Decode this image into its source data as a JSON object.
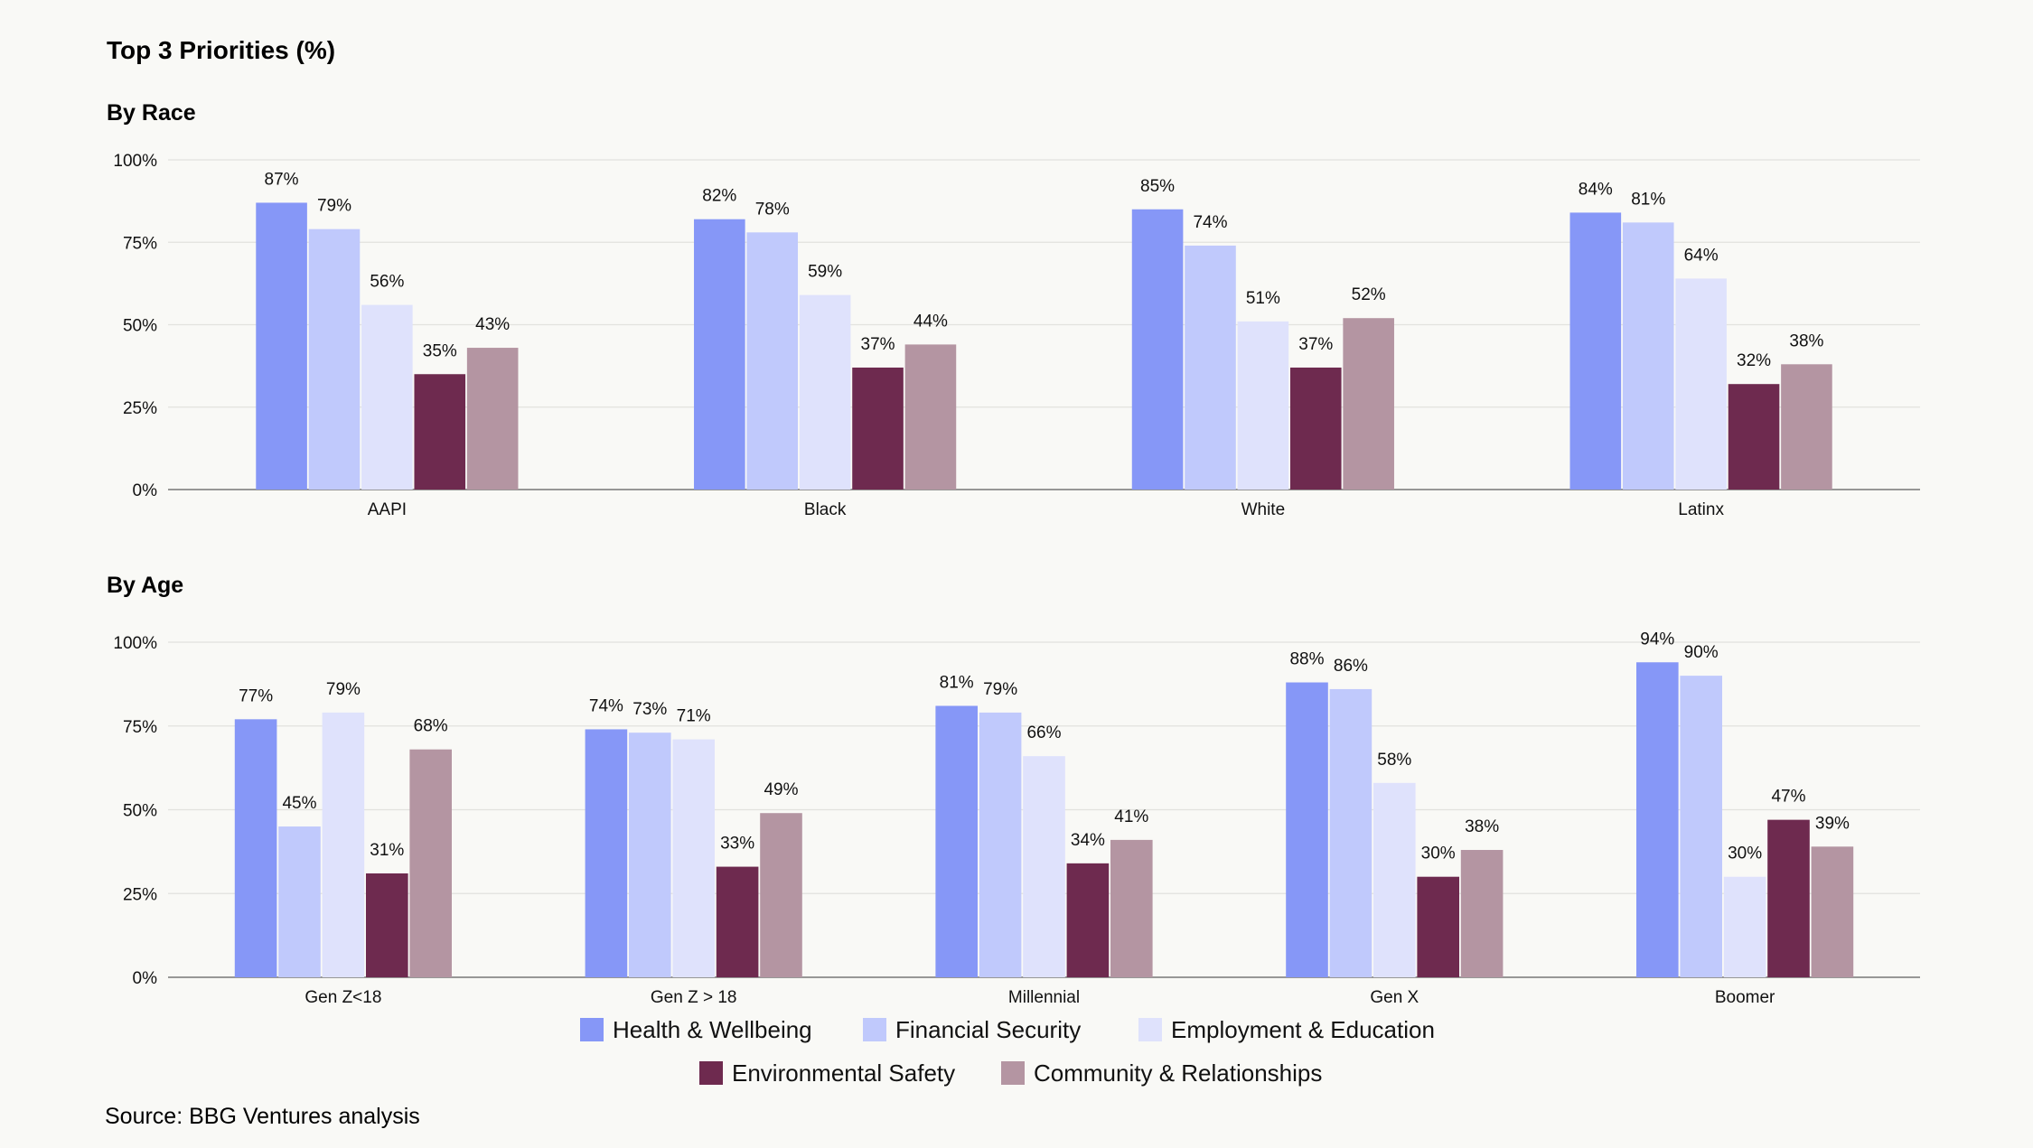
{
  "title": "Top 3 Priorities (%)",
  "source": "Source: BBG Ventures analysis",
  "colors": {
    "Health & Wellbeing": "#8697f7",
    "Financial Security": "#c0c9fc",
    "Employment & Education": "#dfe2fc",
    "Environmental Safety": "#6e2a4f",
    "Community & Relationships": "#b495a2"
  },
  "legend": [
    "Health & Wellbeing",
    "Financial Security",
    "Employment & Education",
    "Environmental Safety",
    "Community & Relationships"
  ],
  "chart_data": [
    {
      "type": "bar",
      "subtitle": "By Race",
      "categories": [
        "AAPI",
        "Black",
        "White",
        "Latinx"
      ],
      "ylim": [
        0,
        100
      ],
      "yticks": [
        "0%",
        "25%",
        "50%",
        "75%",
        "100%"
      ],
      "grid": true,
      "series": [
        {
          "name": "Health & Wellbeing",
          "values": [
            87,
            82,
            85,
            84
          ]
        },
        {
          "name": "Financial Security",
          "values": [
            79,
            78,
            74,
            81
          ]
        },
        {
          "name": "Employment & Education",
          "values": [
            56,
            59,
            51,
            64
          ]
        },
        {
          "name": "Environmental Safety",
          "values": [
            35,
            37,
            37,
            32
          ]
        },
        {
          "name": "Community & Relationships",
          "values": [
            43,
            44,
            52,
            38
          ]
        }
      ]
    },
    {
      "type": "bar",
      "subtitle": "By Age",
      "categories": [
        "Gen Z<18",
        "Gen Z > 18",
        "Millennial",
        "Gen X",
        "Boomer"
      ],
      "ylim": [
        0,
        100
      ],
      "yticks": [
        "0%",
        "25%",
        "50%",
        "75%",
        "100%"
      ],
      "grid": true,
      "legend_position": "bottom",
      "series": [
        {
          "name": "Health & Wellbeing",
          "values": [
            77,
            74,
            81,
            88,
            94
          ]
        },
        {
          "name": "Financial Security",
          "values": [
            45,
            73,
            79,
            86,
            90
          ]
        },
        {
          "name": "Employment & Education",
          "values": [
            79,
            71,
            66,
            58,
            30
          ]
        },
        {
          "name": "Environmental Safety",
          "values": [
            31,
            33,
            34,
            30,
            47
          ]
        },
        {
          "name": "Community & Relationships",
          "values": [
            68,
            49,
            41,
            38,
            39
          ]
        }
      ]
    }
  ]
}
